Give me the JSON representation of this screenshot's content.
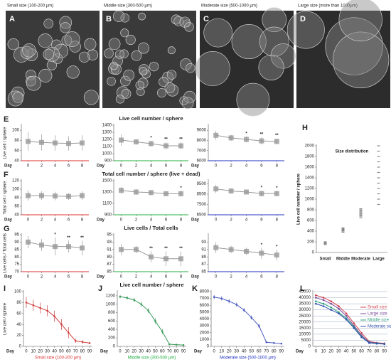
{
  "image_panels": [
    {
      "label": "A",
      "title": "Small size (100-200 µm)",
      "color": "#e03030"
    },
    {
      "label": "B",
      "title": "Middle size (300-500 µm)",
      "color": "#20b040"
    },
    {
      "label": "C",
      "title": "Moderate size (500-1000 µm)",
      "color": "#2030c0"
    },
    {
      "label": "D",
      "title": "Large size (more than 1000µm)",
      "color": "#111111"
    }
  ],
  "chart_data": [
    {
      "type": "line",
      "label": "E",
      "ylabel": "Live cell / sphere",
      "xlabel": "Day",
      "axis_color": "#e03030",
      "x": [
        0,
        2,
        4,
        6,
        8
      ],
      "xlim": [
        -1,
        9
      ],
      "xticks": [
        0,
        2,
        4,
        6,
        8
      ],
      "ylim": [
        40,
        110
      ],
      "yticks": [
        40,
        60,
        80,
        100
      ],
      "series": [
        {
          "color": "#999999",
          "values": [
            78,
            76,
            75,
            74,
            75
          ],
          "errors": [
            18,
            16,
            15,
            14,
            15
          ]
        }
      ]
    },
    {
      "type": "line",
      "title": "Live cell number / sphere",
      "xlabel": "Day",
      "axis_color": "#20b040",
      "x": [
        0,
        2,
        4,
        6,
        8
      ],
      "xlim": [
        -1,
        9
      ],
      "xticks": [
        0,
        2,
        4,
        6,
        8
      ],
      "ylim": [
        900,
        1400
      ],
      "yticks": [
        900,
        1000,
        1100,
        1200,
        1300,
        1400
      ],
      "series": [
        {
          "color": "#999999",
          "values": [
            1190,
            1165,
            1140,
            1110,
            1110
          ],
          "errors": [
            80,
            40,
            40,
            50,
            50
          ]
        }
      ],
      "annotations": [
        {
          "x": 4,
          "text": "*"
        },
        {
          "x": 6,
          "text": "**"
        },
        {
          "x": 8,
          "text": "**"
        }
      ]
    },
    {
      "type": "line",
      "xlabel": "Day",
      "axis_color": "#2030c0",
      "x": [
        0,
        2,
        4,
        6,
        8
      ],
      "xlim": [
        -1,
        9
      ],
      "xticks": [
        0,
        2,
        4,
        6,
        8
      ],
      "ylim": [
        6000,
        9500
      ],
      "yticks": [
        6000,
        7000,
        8000,
        9000
      ],
      "series": [
        {
          "color": "#999999",
          "values": [
            8500,
            8250,
            8100,
            7950,
            7900
          ],
          "errors": [
            450,
            300,
            300,
            350,
            300
          ]
        }
      ],
      "annotations": [
        {
          "x": 4,
          "text": "*"
        },
        {
          "x": 6,
          "text": "**"
        },
        {
          "x": 8,
          "text": "**"
        }
      ]
    },
    {
      "type": "line",
      "label": "F",
      "ylabel": "Total cell / sphere",
      "xlabel": "Day",
      "axis_color": "#e03030",
      "x": [
        0,
        2,
        4,
        6,
        8
      ],
      "xlim": [
        -1,
        9
      ],
      "xticks": [
        0,
        2,
        4,
        6,
        8
      ],
      "ylim": [
        40,
        120
      ],
      "yticks": [
        40,
        60,
        80,
        100,
        120
      ],
      "series": [
        {
          "color": "#999999",
          "values": [
            85,
            85,
            84,
            83,
            85
          ],
          "errors": [
            12,
            10,
            10,
            8,
            10
          ]
        }
      ]
    },
    {
      "type": "line",
      "title": "Total cell number / sphere (live + dead)",
      "xlabel": "Day",
      "axis_color": "#20b040",
      "x": [
        0,
        2,
        4,
        6,
        8
      ],
      "xlim": [
        -1,
        9
      ],
      "xticks": [
        0,
        2,
        4,
        6,
        8
      ],
      "ylim": [
        900,
        1500
      ],
      "yticks": [
        900,
        1100,
        1300,
        1500
      ],
      "series": [
        {
          "color": "#999999",
          "values": [
            1330,
            1300,
            1290,
            1270,
            1270
          ],
          "errors": [
            60,
            50,
            40,
            40,
            50
          ]
        }
      ],
      "annotations": [
        {
          "x": 8,
          "text": "*"
        }
      ]
    },
    {
      "type": "line",
      "xlabel": "Day",
      "axis_color": "#2030c0",
      "x": [
        0,
        2,
        4,
        6,
        8
      ],
      "xlim": [
        -1,
        9
      ],
      "xticks": [
        0,
        2,
        4,
        6,
        8
      ],
      "ylim": [
        6500,
        9800
      ],
      "yticks": [
        6500,
        7500,
        8500,
        9500
      ],
      "series": [
        {
          "color": "#999999",
          "values": [
            9000,
            8800,
            8700,
            8550,
            8550
          ],
          "errors": [
            400,
            250,
            200,
            300,
            250
          ]
        }
      ],
      "annotations": [
        {
          "x": 6,
          "text": "*"
        },
        {
          "x": 8,
          "text": "*"
        }
      ]
    },
    {
      "type": "line",
      "label": "G",
      "ylabel": "Live cells / Total cells",
      "xlabel": "Day",
      "axis_color": "#e03030",
      "x": [
        0,
        2,
        4,
        6,
        8
      ],
      "xlim": [
        -1,
        9
      ],
      "xticks": [
        0,
        2,
        4,
        6,
        8
      ],
      "ylim": [
        70,
        95
      ],
      "yticks": [
        70,
        75,
        80,
        85,
        90,
        95
      ],
      "series": [
        {
          "color": "#999999",
          "values": [
            90,
            88,
            87,
            87,
            86
          ],
          "errors": [
            4,
            4,
            6,
            4,
            5
          ]
        }
      ],
      "annotations": [
        {
          "x": 4,
          "text": "*"
        },
        {
          "x": 6,
          "text": "**"
        },
        {
          "x": 8,
          "text": "**"
        }
      ]
    },
    {
      "type": "line",
      "title": "Live cells / Total cells",
      "xlabel": "Day",
      "axis_color": "#20b040",
      "x": [
        0,
        2,
        4,
        6,
        8
      ],
      "xlim": [
        -1,
        9
      ],
      "xticks": [
        0,
        2,
        4,
        6,
        8
      ],
      "ylim": [
        85,
        95
      ],
      "yticks": [
        85,
        87,
        89,
        91,
        93,
        95
      ],
      "series": [
        {
          "color": "#999999",
          "values": [
            91,
            91,
            89,
            88.5,
            88.5
          ],
          "errors": [
            1.5,
            1,
            1.5,
            2,
            2
          ]
        }
      ],
      "annotations": [
        {
          "x": 4,
          "text": "**"
        },
        {
          "x": 6,
          "text": "**"
        },
        {
          "x": 8,
          "text": "**"
        }
      ]
    },
    {
      "type": "line",
      "xlabel": "Day",
      "axis_color": "#2030c0",
      "x": [
        0,
        2,
        4,
        6,
        8
      ],
      "xlim": [
        -1,
        9
      ],
      "xticks": [
        0,
        2,
        4,
        6,
        8
      ],
      "ylim": [
        85,
        95
      ],
      "yticks": [
        85,
        87,
        89,
        91,
        93
      ],
      "series": [
        {
          "color": "#999999",
          "values": [
            91.5,
            91,
            90.5,
            90,
            89.5
          ],
          "errors": [
            1.5,
            1,
            1,
            1.5,
            1.5
          ]
        }
      ],
      "annotations": [
        {
          "x": 6,
          "text": "*"
        },
        {
          "x": 8,
          "text": "*"
        }
      ]
    },
    {
      "type": "strip",
      "label": "H",
      "title": "Size distribution",
      "ylabel": "Live cell number / sphere",
      "categories": [
        "Small",
        "Middle",
        "Moderate",
        "Large"
      ],
      "ylim": [
        0,
        2000
      ],
      "yticks": [
        0,
        200,
        400,
        600,
        800,
        1000,
        1200,
        1400,
        1600,
        1800,
        2000
      ],
      "color": "#888888",
      "values": [
        [
          150,
          160,
          170,
          180,
          190,
          200
        ],
        [
          380,
          400,
          410,
          420,
          430,
          440,
          450,
          460
        ],
        [
          650,
          680,
          700,
          720,
          740,
          760,
          780,
          800,
          820
        ],
        [
          900,
          1000,
          1100,
          1200,
          1300,
          1400,
          1500,
          1600,
          1700,
          1800,
          1900,
          2000
        ]
      ]
    },
    {
      "type": "line",
      "label": "I",
      "ylabel": "Live cell / sphere",
      "xlabel": "Day",
      "caption": "Small size (100-200 µm)",
      "caption_color": "#e03030",
      "x": [
        0,
        10,
        20,
        30,
        40,
        50,
        60,
        70,
        80,
        90
      ],
      "xlim": [
        -4,
        94
      ],
      "xticks": [
        0,
        10,
        20,
        30,
        40,
        50,
        60,
        70,
        80,
        90
      ],
      "ylim": [
        0,
        100
      ],
      "yticks": [
        0,
        20,
        40,
        60,
        80,
        100
      ],
      "marker": "dot",
      "series": [
        {
          "color": "#d04040",
          "values": [
            80,
            75,
            70,
            65,
            55,
            40,
            25,
            10,
            8,
            6
          ],
          "errors": [
            10,
            10,
            10,
            10,
            10,
            10,
            10,
            4,
            3,
            2
          ]
        }
      ]
    },
    {
      "type": "line",
      "label": "J",
      "title": "Live cell number / sphere",
      "xlabel": "Day",
      "caption": "Middle size (300-500 µm)",
      "caption_color": "#20b040",
      "x": [
        0,
        10,
        20,
        30,
        40,
        50,
        60,
        70,
        80,
        90
      ],
      "xlim": [
        -4,
        94
      ],
      "xticks": [
        0,
        10,
        20,
        30,
        40,
        50,
        60,
        70,
        80,
        90
      ],
      "ylim": [
        0,
        1300
      ],
      "yticks": [
        0,
        200,
        400,
        600,
        800,
        1000,
        1200
      ],
      "marker": "dot",
      "series": [
        {
          "color": "#3a9a5a",
          "values": [
            1180,
            1150,
            1100,
            1000,
            850,
            600,
            350,
            50,
            40,
            30
          ],
          "errors": [
            40,
            40,
            50,
            60,
            60,
            70,
            60,
            20,
            15,
            10
          ]
        }
      ]
    },
    {
      "type": "line",
      "label": "K",
      "xlabel": "Day",
      "caption": "Moderate size (500-1000 µm)",
      "caption_color": "#2030c0",
      "x": [
        0,
        10,
        20,
        30,
        40,
        50,
        60,
        70,
        80,
        90
      ],
      "xlim": [
        -4,
        94
      ],
      "xticks": [
        0,
        10,
        20,
        30,
        40,
        50,
        60,
        70,
        80,
        90
      ],
      "ylim": [
        0,
        8000
      ],
      "yticks": [
        0,
        1000,
        2000,
        3000,
        4000,
        5000,
        6000,
        7000,
        8000
      ],
      "marker": "dot",
      "series": [
        {
          "color": "#4a5ac0",
          "values": [
            7200,
            7000,
            6600,
            6100,
            5300,
            4200,
            3000,
            600,
            500,
            400
          ],
          "errors": [
            300,
            300,
            300,
            300,
            300,
            300,
            300,
            100,
            80,
            60
          ]
        }
      ]
    },
    {
      "type": "line",
      "label": "L",
      "xlabel": "Day",
      "grid": true,
      "x": [
        0,
        10,
        20,
        30,
        40,
        50,
        60,
        70,
        80,
        90
      ],
      "xlim": [
        -4,
        94
      ],
      "xticks": [
        0,
        10,
        20,
        30,
        40,
        50,
        60,
        70,
        80,
        90
      ],
      "ylim": [
        0,
        45000
      ],
      "yticks": [
        0,
        5000,
        10000,
        15000,
        20000,
        25000,
        30000,
        35000,
        40000,
        45000
      ],
      "marker": "dot",
      "series": [
        {
          "name": "Small size",
          "color": "#d04050",
          "values": [
            42000,
            40000,
            37000,
            33000,
            27000,
            19000,
            11000,
            4000,
            3000,
            2500
          ]
        },
        {
          "name": "Large size",
          "color": "#7a4a9a",
          "values": [
            40000,
            38000,
            35000,
            31000,
            25000,
            17000,
            9000,
            3500,
            2800,
            2200
          ]
        },
        {
          "name": "Middle size",
          "color": "#30a080",
          "values": [
            37000,
            35000,
            32000,
            28000,
            23000,
            16000,
            8000,
            3000,
            2500,
            2000
          ]
        },
        {
          "name": "Moderate size",
          "color": "#3050b0",
          "values": [
            35000,
            33000,
            30000,
            27000,
            22000,
            15000,
            7500,
            2800,
            2200,
            1800
          ]
        }
      ]
    }
  ]
}
